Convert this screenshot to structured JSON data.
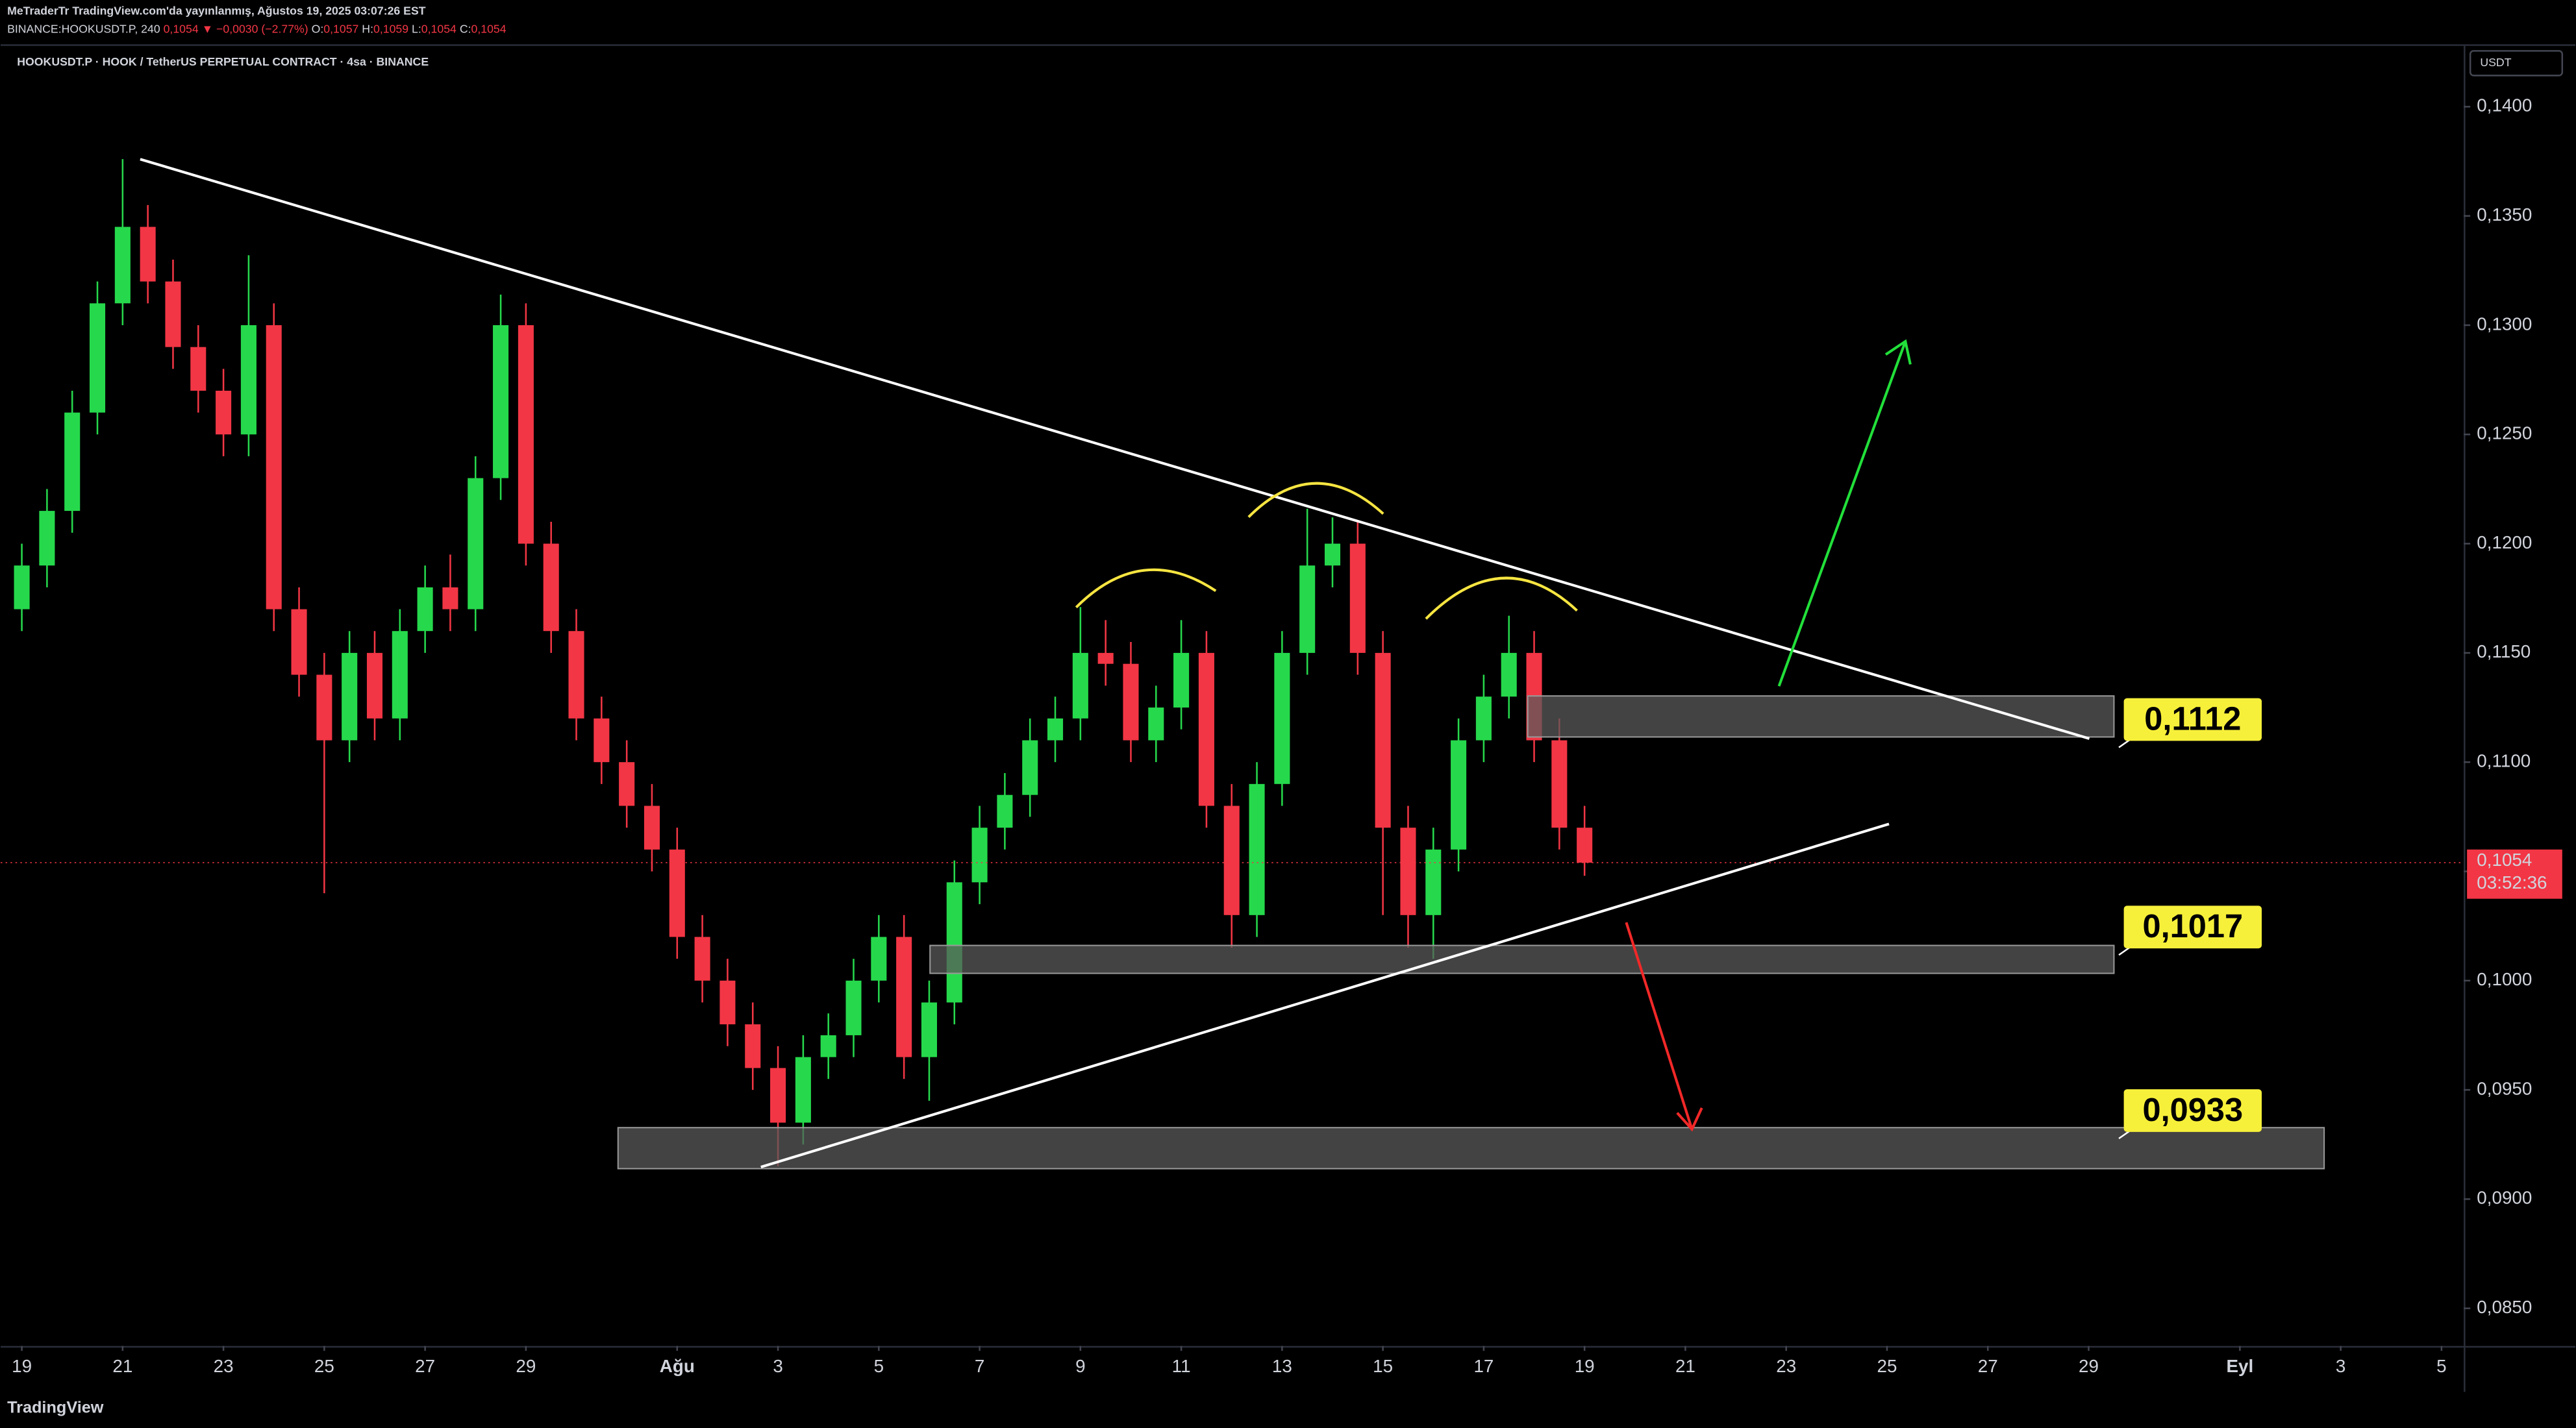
{
  "header": {
    "published": "MeTraderTr TradingView.com'da yayınlanmış, Ağustos 19, 2025 03:07:26 EST",
    "symbol": "BINANCE:HOOKUSDT.P, 240",
    "last": "0,1054",
    "change": "▼ −0,0030 (−2.77%)",
    "ohlc": [
      {
        "key": "O:",
        "value": "0,1057"
      },
      {
        "key": "H:",
        "value": "0,1059"
      },
      {
        "key": "L:",
        "value": "0,1054"
      },
      {
        "key": "C:",
        "value": "0,1054"
      }
    ]
  },
  "chart_data": {
    "type": "candlestick",
    "title": "HOOKUSDT.P · HOOK / TetherUS PERPETUAL CONTRACT · 4sa · BINANCE",
    "currency": "USDT",
    "up_color": "#26d94c",
    "down_color": "#f23645",
    "xlim": [
      -0.42,
      48.44
    ],
    "ylim": [
      0.08328,
      0.14278
    ],
    "xticks": [
      {
        "value": 0,
        "label": "19"
      },
      {
        "value": 2,
        "label": "21"
      },
      {
        "value": 4,
        "label": "23"
      },
      {
        "value": 6,
        "label": "25"
      },
      {
        "value": 8,
        "label": "27"
      },
      {
        "value": 10,
        "label": "29"
      },
      {
        "value": 13,
        "label": "Ağu"
      },
      {
        "value": 15,
        "label": "3"
      },
      {
        "value": 17,
        "label": "5"
      },
      {
        "value": 19,
        "label": "7"
      },
      {
        "value": 21,
        "label": "9"
      },
      {
        "value": 23,
        "label": "11"
      },
      {
        "value": 25,
        "label": "13"
      },
      {
        "value": 27,
        "label": "15"
      },
      {
        "value": 29,
        "label": "17"
      },
      {
        "value": 31,
        "label": "19"
      },
      {
        "value": 33,
        "label": "21"
      },
      {
        "value": 35,
        "label": "23"
      },
      {
        "value": 37,
        "label": "25"
      },
      {
        "value": 39,
        "label": "27"
      },
      {
        "value": 41,
        "label": "29"
      },
      {
        "value": 44,
        "label": "Eyl"
      },
      {
        "value": 46,
        "label": "3"
      },
      {
        "value": 48,
        "label": "5"
      }
    ],
    "yticks": [
      {
        "value": 0.14,
        "label": "0,1400"
      },
      {
        "value": 0.135,
        "label": "0,1350"
      },
      {
        "value": 0.13,
        "label": "0,1300"
      },
      {
        "value": 0.125,
        "label": "0,1250"
      },
      {
        "value": 0.12,
        "label": "0,1200"
      },
      {
        "value": 0.115,
        "label": "0,1150"
      },
      {
        "value": 0.11,
        "label": "0,1100"
      },
      {
        "value": 0.105,
        "label": "0,1050"
      },
      {
        "value": 0.1,
        "label": "0,1000"
      },
      {
        "value": 0.095,
        "label": "0,0950"
      },
      {
        "value": 0.09,
        "label": "0,0900"
      },
      {
        "value": 0.085,
        "label": "0,0850"
      }
    ],
    "x": [
      0,
      0.5,
      1,
      1.5,
      2,
      2.5,
      3,
      3.5,
      4,
      4.5,
      5,
      5.5,
      6,
      6.5,
      7,
      7.5,
      8,
      8.5,
      9,
      9.5,
      10,
      10.5,
      11,
      11.5,
      12,
      12.5,
      13,
      13.5,
      14,
      14.5,
      15,
      15.5,
      16,
      16.5,
      17,
      17.5,
      18,
      18.5,
      19,
      19.5,
      20,
      20.5,
      21,
      21.5,
      22,
      22.5,
      23,
      23.5,
      24,
      24.5,
      25,
      25.5,
      26,
      26.5,
      27,
      27.5,
      28,
      28.5,
      29,
      29.5,
      30,
      30.5,
      31
    ],
    "open": [
      0.117,
      0.119,
      0.1215,
      0.126,
      0.131,
      0.1345,
      0.132,
      0.129,
      0.127,
      0.125,
      0.13,
      0.117,
      0.114,
      0.111,
      0.115,
      0.112,
      0.116,
      0.118,
      0.117,
      0.123,
      0.13,
      0.12,
      0.116,
      0.112,
      0.11,
      0.108,
      0.106,
      0.102,
      0.1,
      0.098,
      0.096,
      0.0935,
      0.0965,
      0.0975,
      0.1,
      0.102,
      0.0965,
      0.099,
      0.1045,
      0.107,
      0.1085,
      0.111,
      0.112,
      0.115,
      0.1145,
      0.111,
      0.1125,
      0.115,
      0.108,
      0.103,
      0.109,
      0.115,
      0.119,
      0.12,
      0.115,
      0.107,
      0.103,
      0.106,
      0.111,
      0.113,
      0.115,
      0.111,
      0.107
    ],
    "high": [
      0.12,
      0.1225,
      0.127,
      0.132,
      0.1376,
      0.1355,
      0.133,
      0.13,
      0.128,
      0.1332,
      0.131,
      0.118,
      0.115,
      0.116,
      0.116,
      0.117,
      0.119,
      0.1195,
      0.124,
      0.1314,
      0.131,
      0.121,
      0.117,
      0.113,
      0.111,
      0.109,
      0.107,
      0.103,
      0.101,
      0.099,
      0.097,
      0.0975,
      0.0985,
      0.101,
      0.103,
      0.103,
      0.1,
      0.1055,
      0.108,
      0.1095,
      0.112,
      0.113,
      0.1171,
      0.1165,
      0.1155,
      0.1135,
      0.1165,
      0.116,
      0.109,
      0.11,
      0.116,
      0.1216,
      0.1212,
      0.121,
      0.116,
      0.108,
      0.107,
      0.112,
      0.114,
      0.1167,
      0.116,
      0.112,
      0.108
    ],
    "low": [
      0.116,
      0.118,
      0.1205,
      0.125,
      0.13,
      0.131,
      0.128,
      0.126,
      0.124,
      0.124,
      0.116,
      0.113,
      0.104,
      0.11,
      0.111,
      0.111,
      0.115,
      0.116,
      0.116,
      0.122,
      0.119,
      0.115,
      0.111,
      0.109,
      0.107,
      0.105,
      0.101,
      0.099,
      0.097,
      0.095,
      0.0915,
      0.0925,
      0.0955,
      0.0965,
      0.099,
      0.0955,
      0.0945,
      0.098,
      0.1035,
      0.106,
      0.1075,
      0.11,
      0.111,
      0.1135,
      0.11,
      0.11,
      0.1115,
      0.107,
      0.1015,
      0.102,
      0.108,
      0.114,
      0.118,
      0.114,
      0.103,
      0.1015,
      0.101,
      0.105,
      0.11,
      0.112,
      0.11,
      0.106,
      0.1048
    ],
    "close": [
      0.119,
      0.1215,
      0.126,
      0.131,
      0.1345,
      0.132,
      0.129,
      0.127,
      0.125,
      0.13,
      0.117,
      0.114,
      0.111,
      0.115,
      0.112,
      0.116,
      0.118,
      0.117,
      0.123,
      0.13,
      0.12,
      0.116,
      0.112,
      0.11,
      0.108,
      0.106,
      0.102,
      0.1,
      0.098,
      0.096,
      0.0935,
      0.0965,
      0.0975,
      0.1,
      0.102,
      0.0965,
      0.099,
      0.1045,
      0.107,
      0.1085,
      0.111,
      0.112,
      0.115,
      0.1145,
      0.111,
      0.1125,
      0.115,
      0.108,
      0.103,
      0.109,
      0.115,
      0.119,
      0.12,
      0.115,
      0.107,
      0.103,
      0.106,
      0.111,
      0.113,
      0.115,
      0.111,
      0.107,
      0.1054
    ],
    "current_price": {
      "value": 0.1054,
      "label": "0,1054",
      "countdown": "03:52:36"
    },
    "annotations": [
      {
        "value": 0.1112,
        "label": "0,1112"
      },
      {
        "value": 0.1017,
        "label": "0,1017"
      },
      {
        "value": 0.0933,
        "label": "0,0933"
      }
    ],
    "brand": "TradingView"
  }
}
